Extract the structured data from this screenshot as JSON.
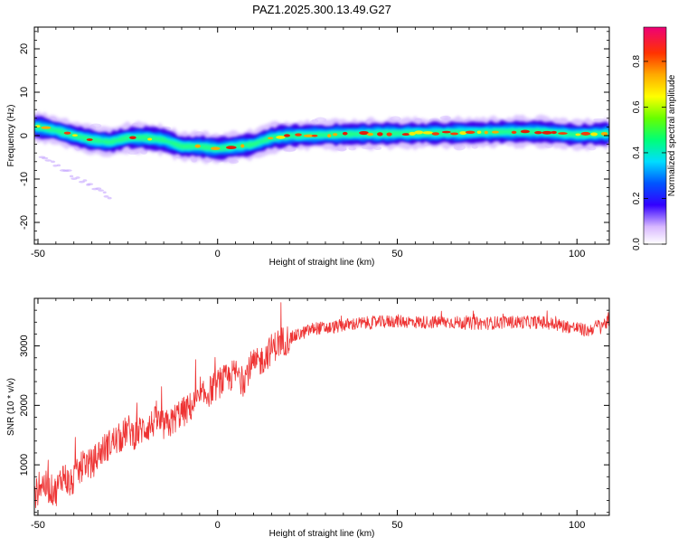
{
  "title": "PAZ1.2025.300.13.49.G27",
  "colors": {
    "snr_line": "#ee3333",
    "axis": "#000000",
    "background": "#ffffff"
  },
  "chart_data": [
    {
      "type": "heatmap",
      "name": "spectrogram",
      "xlabel": "Height of straight line (km)",
      "ylabel": "Frequency (Hz)",
      "xlim": [
        -51,
        109
      ],
      "ylim": [
        -25,
        25
      ],
      "xticks": [
        -50,
        0,
        50,
        100
      ],
      "yticks": [
        20,
        10,
        0,
        -10,
        -20
      ],
      "ridge": {
        "x": [
          -50,
          -45,
          -40,
          -35,
          -30,
          -25,
          -20,
          -15,
          -10,
          -5,
          0,
          5,
          10,
          15,
          20,
          30,
          40,
          50,
          60,
          70,
          80,
          90,
          100,
          109
        ],
        "freq": [
          2,
          1.2,
          0,
          -1,
          -1.5,
          -0.5,
          -0.5,
          -1,
          -2.5,
          -2.5,
          -3,
          -2.5,
          -2,
          -0.5,
          0,
          0.2,
          0.4,
          0.5,
          0.6,
          0.7,
          0.9,
          0.9,
          0.2,
          0.5
        ]
      },
      "colorbar": {
        "label": "Normalized spectral amplitude",
        "range": [
          0,
          0.95
        ],
        "ticks": [
          0.0,
          0.2,
          0.4,
          0.6,
          0.8
        ],
        "tick_labels": [
          "0.0",
          "0.2",
          "0.4",
          "0.6",
          "0.8"
        ]
      }
    },
    {
      "type": "line",
      "name": "snr",
      "xlabel": "Height of straight line (km)",
      "ylabel": "SNR (10 * v/v)",
      "xlim": [
        -51,
        109
      ],
      "ylim": [
        150,
        3800
      ],
      "xticks": [
        -50,
        0,
        50,
        100
      ],
      "yticks": [
        1000,
        2000,
        3000
      ],
      "series": [
        {
          "name": "SNR",
          "x": [
            -51,
            -49,
            -47,
            -45,
            -43,
            -41,
            -39,
            -37,
            -35,
            -33,
            -31,
            -29,
            -27,
            -25,
            -23,
            -21,
            -19,
            -17,
            -15,
            -13,
            -11,
            -9,
            -7,
            -5,
            -3,
            -1,
            1,
            3,
            5,
            7,
            9,
            11,
            13,
            15,
            17,
            19,
            21,
            23,
            25,
            27,
            29,
            31,
            35,
            40,
            45,
            50,
            55,
            60,
            65,
            70,
            75,
            80,
            85,
            90,
            95,
            100,
            103,
            106,
            109
          ],
          "y": [
            450,
            700,
            600,
            550,
            850,
            650,
            850,
            1050,
            1000,
            1200,
            1300,
            1400,
            1450,
            1600,
            1500,
            1600,
            1650,
            1750,
            1650,
            1700,
            1850,
            1900,
            2000,
            2100,
            2200,
            2300,
            2400,
            2450,
            2550,
            2400,
            2650,
            2700,
            2800,
            2950,
            3050,
            3100,
            3150,
            3200,
            3250,
            3300,
            3300,
            3300,
            3350,
            3380,
            3400,
            3420,
            3400,
            3400,
            3400,
            3380,
            3380,
            3400,
            3400,
            3400,
            3350,
            3300,
            3250,
            3350,
            3400
          ]
        }
      ]
    }
  ]
}
